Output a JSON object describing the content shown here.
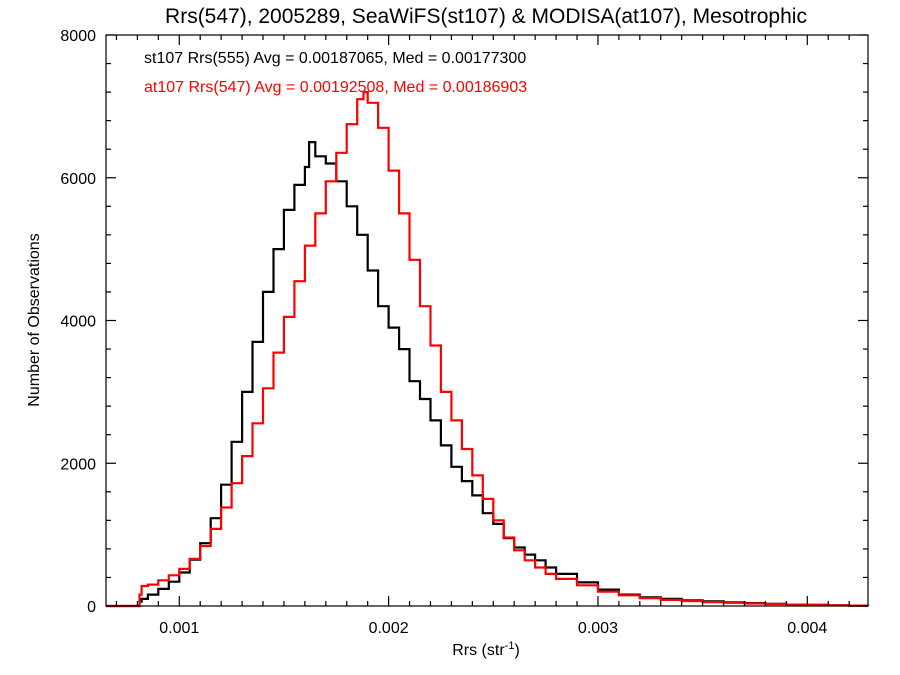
{
  "chart_data": {
    "type": "histogram",
    "title": "Rrs(547), 2005289, SeaWiFS(st107) & MODISA(at107), Mesotrophic",
    "xlabel_main": "Rrs (str",
    "xlabel_sup": "-1",
    "xlabel_close": ")",
    "ylabel": "Number of Observations",
    "xlim": [
      0.00065,
      0.00429
    ],
    "ylim": [
      0,
      8000
    ],
    "xticks": [
      0.001,
      0.002,
      0.003,
      0.004
    ],
    "xtick_labels": [
      "0.001",
      "0.002",
      "0.003",
      "0.004"
    ],
    "yticks": [
      0,
      2000,
      4000,
      6000,
      8000
    ],
    "ytick_labels": [
      "0",
      "2000",
      "4000",
      "6000",
      "8000"
    ],
    "grid": false,
    "legend_position": "top-left",
    "series": [
      {
        "name": "st107 Rrs(555) Avg = 0.00187065, Med = 0.00177300",
        "color": "#000000",
        "points": [
          [
            0.00065,
            0
          ],
          [
            0.0008,
            0
          ],
          [
            0.00081,
            60
          ],
          [
            0.00082,
            100
          ],
          [
            0.00085,
            160
          ],
          [
            0.0009,
            240
          ],
          [
            0.00095,
            340
          ],
          [
            0.001,
            470
          ],
          [
            0.00105,
            650
          ],
          [
            0.0011,
            880
          ],
          [
            0.00115,
            1230
          ],
          [
            0.0012,
            1700
          ],
          [
            0.00125,
            2300
          ],
          [
            0.0013,
            3000
          ],
          [
            0.00135,
            3700
          ],
          [
            0.0014,
            4400
          ],
          [
            0.00145,
            5000
          ],
          [
            0.0015,
            5550
          ],
          [
            0.00155,
            5900
          ],
          [
            0.0016,
            6150
          ],
          [
            0.00162,
            6500
          ],
          [
            0.00165,
            6300
          ],
          [
            0.0017,
            6200
          ],
          [
            0.00175,
            5950
          ],
          [
            0.0018,
            5600
          ],
          [
            0.00185,
            5200
          ],
          [
            0.0019,
            4700
          ],
          [
            0.00195,
            4200
          ],
          [
            0.002,
            3900
          ],
          [
            0.00205,
            3600
          ],
          [
            0.0021,
            3150
          ],
          [
            0.00215,
            2900
          ],
          [
            0.0022,
            2600
          ],
          [
            0.00225,
            2250
          ],
          [
            0.0023,
            1950
          ],
          [
            0.00235,
            1750
          ],
          [
            0.0024,
            1550
          ],
          [
            0.00245,
            1300
          ],
          [
            0.0025,
            1150
          ],
          [
            0.00255,
            950
          ],
          [
            0.0026,
            820
          ],
          [
            0.00265,
            720
          ],
          [
            0.0027,
            640
          ],
          [
            0.00275,
            540
          ],
          [
            0.0028,
            450
          ],
          [
            0.0029,
            330
          ],
          [
            0.003,
            230
          ],
          [
            0.0031,
            160
          ],
          [
            0.0032,
            120
          ],
          [
            0.0033,
            100
          ],
          [
            0.0034,
            80
          ],
          [
            0.0035,
            65
          ],
          [
            0.0036,
            50
          ],
          [
            0.0037,
            40
          ],
          [
            0.0038,
            30
          ],
          [
            0.0039,
            20
          ],
          [
            0.004,
            15
          ],
          [
            0.0041,
            10
          ],
          [
            0.0042,
            5
          ],
          [
            0.00429,
            3
          ]
        ]
      },
      {
        "name": "at107 Rrs(547) Avg = 0.00192508, Med = 0.00186903",
        "color": "#ff0000",
        "points": [
          [
            0.00065,
            0
          ],
          [
            0.0008,
            0
          ],
          [
            0.00081,
            160
          ],
          [
            0.00082,
            280
          ],
          [
            0.00085,
            300
          ],
          [
            0.0009,
            360
          ],
          [
            0.00095,
            430
          ],
          [
            0.001,
            520
          ],
          [
            0.00105,
            660
          ],
          [
            0.0011,
            840
          ],
          [
            0.00115,
            1080
          ],
          [
            0.0012,
            1380
          ],
          [
            0.00125,
            1720
          ],
          [
            0.0013,
            2100
          ],
          [
            0.00135,
            2560
          ],
          [
            0.0014,
            3050
          ],
          [
            0.00145,
            3550
          ],
          [
            0.0015,
            4050
          ],
          [
            0.00155,
            4550
          ],
          [
            0.0016,
            5050
          ],
          [
            0.00165,
            5500
          ],
          [
            0.0017,
            5950
          ],
          [
            0.00175,
            6350
          ],
          [
            0.0018,
            6750
          ],
          [
            0.00185,
            7100
          ],
          [
            0.00188,
            7200
          ],
          [
            0.0019,
            7050
          ],
          [
            0.00195,
            6700
          ],
          [
            0.002,
            6100
          ],
          [
            0.00205,
            5500
          ],
          [
            0.0021,
            4850
          ],
          [
            0.00215,
            4200
          ],
          [
            0.0022,
            3650
          ],
          [
            0.00225,
            3000
          ],
          [
            0.0023,
            2600
          ],
          [
            0.00235,
            2200
          ],
          [
            0.0024,
            1830
          ],
          [
            0.00245,
            1500
          ],
          [
            0.0025,
            1200
          ],
          [
            0.00255,
            960
          ],
          [
            0.0026,
            780
          ],
          [
            0.00265,
            640
          ],
          [
            0.0027,
            540
          ],
          [
            0.00275,
            450
          ],
          [
            0.0028,
            380
          ],
          [
            0.0029,
            290
          ],
          [
            0.003,
            200
          ],
          [
            0.0031,
            150
          ],
          [
            0.0032,
            110
          ],
          [
            0.0033,
            85
          ],
          [
            0.0034,
            70
          ],
          [
            0.0035,
            55
          ],
          [
            0.0036,
            45
          ],
          [
            0.0037,
            35
          ],
          [
            0.0038,
            28
          ],
          [
            0.0039,
            20
          ],
          [
            0.004,
            15
          ],
          [
            0.0041,
            10
          ],
          [
            0.0042,
            5
          ],
          [
            0.00429,
            3
          ]
        ]
      }
    ]
  }
}
